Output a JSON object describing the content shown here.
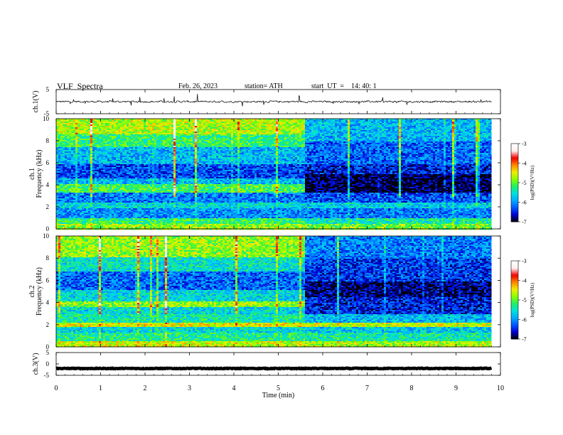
{
  "header": {
    "title": "VLF  Spectra",
    "date": "Feb. 26, 2023",
    "station": "station= ATH",
    "start": "start  UT  =    14: 40: 1"
  },
  "chart_data": [
    {
      "type": "line",
      "name": "ch1-waveform",
      "ylabel": "ch.1(V)",
      "ylim": [
        -5,
        5
      ],
      "yticks": [
        5,
        -5
      ],
      "xlim": [
        0,
        10
      ],
      "data_end_min": 9.8,
      "baseline_v": 0,
      "typical_amplitude_v": 0.6
    },
    {
      "type": "heatmap",
      "name": "ch1-spectrogram",
      "ylabel": "ch.1\nFrequency (kHz)",
      "ylabel_lines": [
        "ch.1",
        "Frequency (kHz)"
      ],
      "ylim": [
        0,
        10
      ],
      "yticks": [
        0,
        2,
        4,
        6,
        8,
        10
      ],
      "xlim": [
        0,
        10
      ],
      "data_end_min": 9.8,
      "regime_change_min": 5.6,
      "colorbar": {
        "label": "log(PSD)(V²/Hz)",
        "ticks": [
          -3,
          -4,
          -5,
          -6,
          -7
        ],
        "range": [
          -7,
          -3
        ]
      },
      "segments": [
        {
          "x": [
            0,
            5.6
          ],
          "bands": [
            {
              "f": [
                0,
                0.5
              ],
              "log_psd": -4.8
            },
            {
              "f": [
                0.5,
                1.0
              ],
              "log_psd": -5.2
            },
            {
              "f": [
                1.0,
                2.0
              ],
              "log_psd": -6.0
            },
            {
              "f": [
                2.0,
                2.4
              ],
              "log_psd": -5.6
            },
            {
              "f": [
                2.4,
                3.4
              ],
              "log_psd": -6.1
            },
            {
              "f": [
                3.4,
                4.1
              ],
              "log_psd": -5.1
            },
            {
              "f": [
                4.1,
                4.7
              ],
              "log_psd": -5.8
            },
            {
              "f": [
                4.7,
                6.0
              ],
              "log_psd": -6.3
            },
            {
              "f": [
                6.0,
                7.5
              ],
              "log_psd": -5.8
            },
            {
              "f": [
                7.5,
                8.6
              ],
              "log_psd": -5.2
            },
            {
              "f": [
                8.6,
                10
              ],
              "log_psd": -4.7
            }
          ]
        },
        {
          "x": [
            5.6,
            9.8
          ],
          "bands": [
            {
              "f": [
                0,
                0.5
              ],
              "log_psd": -4.9
            },
            {
              "f": [
                0.5,
                1.0
              ],
              "log_psd": -5.4
            },
            {
              "f": [
                1.0,
                2.0
              ],
              "log_psd": -6.1
            },
            {
              "f": [
                2.0,
                2.4
              ],
              "log_psd": -5.7
            },
            {
              "f": [
                2.4,
                3.4
              ],
              "log_psd": -6.3
            },
            {
              "f": [
                3.4,
                5.0
              ],
              "log_psd": -6.9
            },
            {
              "f": [
                5.0,
                6.0
              ],
              "log_psd": -6.5
            },
            {
              "f": [
                6.0,
                8.0
              ],
              "log_psd": -6.2
            },
            {
              "f": [
                8.0,
                10
              ],
              "log_psd": -5.8
            }
          ]
        }
      ]
    },
    {
      "type": "heatmap",
      "name": "ch2-spectrogram",
      "ylabel": "ch.2\nFrequency (kHz)",
      "ylabel_lines": [
        "ch.2",
        "Frequency (kHz)"
      ],
      "ylim": [
        0,
        10
      ],
      "yticks": [
        0,
        2,
        4,
        6,
        8,
        10
      ],
      "xlim": [
        0,
        10
      ],
      "data_end_min": 9.8,
      "regime_change_min": 5.6,
      "colorbar": {
        "label": "log(PSD)(V²/Hz)",
        "ticks": [
          -3,
          -4,
          -5,
          -6,
          -7
        ],
        "range": [
          -7,
          -3
        ]
      },
      "segments": [
        {
          "x": [
            0,
            5.6
          ],
          "bands": [
            {
              "f": [
                0,
                0.6
              ],
              "log_psd": -4.6
            },
            {
              "f": [
                0.6,
                1.3
              ],
              "log_psd": -5.3
            },
            {
              "f": [
                1.3,
                1.8
              ],
              "log_psd": -5.6
            },
            {
              "f": [
                1.8,
                2.2
              ],
              "log_psd": -4.5
            },
            {
              "f": [
                2.2,
                3.0
              ],
              "log_psd": -5.4
            },
            {
              "f": [
                3.0,
                3.6
              ],
              "log_psd": -5.6
            },
            {
              "f": [
                3.6,
                4.2
              ],
              "log_psd": -4.8
            },
            {
              "f": [
                4.2,
                5.2
              ],
              "log_psd": -5.6
            },
            {
              "f": [
                5.2,
                6.8
              ],
              "log_psd": -6.2
            },
            {
              "f": [
                6.8,
                8.2
              ],
              "log_psd": -5.5
            },
            {
              "f": [
                8.2,
                10
              ],
              "log_psd": -4.8
            }
          ]
        },
        {
          "x": [
            5.6,
            9.8
          ],
          "bands": [
            {
              "f": [
                0,
                0.6
              ],
              "log_psd": -4.7
            },
            {
              "f": [
                0.6,
                1.3
              ],
              "log_psd": -5.4
            },
            {
              "f": [
                1.3,
                1.8
              ],
              "log_psd": -5.7
            },
            {
              "f": [
                1.8,
                2.2
              ],
              "log_psd": -4.6
            },
            {
              "f": [
                2.2,
                3.0
              ],
              "log_psd": -5.8
            },
            {
              "f": [
                3.0,
                4.6
              ],
              "log_psd": -6.5
            },
            {
              "f": [
                4.6,
                6.0
              ],
              "log_psd": -6.8
            },
            {
              "f": [
                6.0,
                8.0
              ],
              "log_psd": -6.4
            },
            {
              "f": [
                8.0,
                10
              ],
              "log_psd": -6.1
            }
          ]
        }
      ]
    },
    {
      "type": "line",
      "name": "ch3-waveform",
      "ylabel": "ch.3(V)",
      "ylim": [
        -5,
        5
      ],
      "yticks": [
        5,
        0,
        -5
      ],
      "xlim": [
        0,
        10
      ],
      "data_end_min": 9.8,
      "baseline_v": -2,
      "typical_amplitude_v": 0.25
    }
  ],
  "xaxis": {
    "label": "Time  (min)",
    "ticks": [
      0,
      1,
      2,
      3,
      4,
      5,
      6,
      7,
      8,
      9,
      10
    ],
    "range": [
      0,
      10
    ]
  },
  "colors": {
    "colormap": [
      "#000000",
      "#0000cc",
      "#0055ff",
      "#00aaff",
      "#00e0e0",
      "#22ee66",
      "#88ff00",
      "#eeee00",
      "#ff8800",
      "#ee0000",
      "#ffeeee",
      "#ffffff"
    ],
    "trace": "#000000",
    "frame": "#000000"
  }
}
